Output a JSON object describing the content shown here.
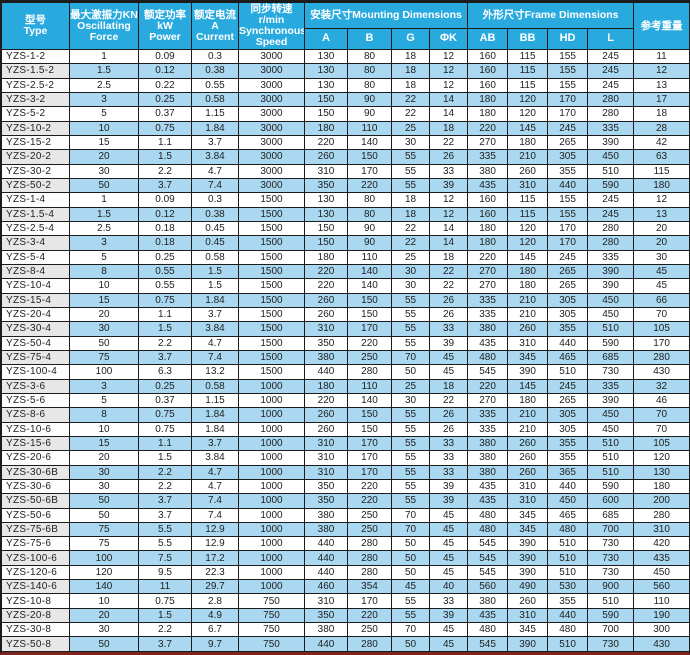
{
  "colors": {
    "header_bg": "#29aadf",
    "stripe_bg": "#a9d8f0",
    "type_stripe_bg": "#e7e7e7",
    "border": "#1c1c1c",
    "bottom_accent": "#7c2420"
  },
  "header": {
    "type": "型号\nType",
    "force": "最大激振力KN\nOscillating\nForce",
    "power": "额定功率\nkW\nPower",
    "current": "额定电流\nA\nCurrent",
    "speed": "同步转速\nr/min\nSynchronous\nSpeed",
    "mounting_group": "安装尺寸Mounting Dimensions",
    "frame_group": "外形尺寸Frame Dimensions",
    "a": "A",
    "b": "B",
    "g": "G",
    "phik": "ΦK",
    "ab": "AB",
    "bb": "BB",
    "hd": "HD",
    "l": "L",
    "weight": "参考重量"
  },
  "chart_data": {
    "type": "table",
    "columns": [
      "型号 Type",
      "最大激振力KN Oscillating Force",
      "额定功率 kW Power",
      "额定电流 A Current",
      "同步转速 r/min Synchronous Speed",
      "A",
      "B",
      "G",
      "ΦK",
      "AB",
      "BB",
      "HD",
      "L",
      "参考重量"
    ],
    "column_groups": [
      {
        "label": "安装尺寸Mounting Dimensions",
        "columns": [
          "A",
          "B",
          "G",
          "ΦK"
        ]
      },
      {
        "label": "外形尺寸Frame Dimensions",
        "columns": [
          "AB",
          "BB",
          "HD",
          "L"
        ]
      }
    ],
    "rows": [
      [
        "YZS-1-2",
        1,
        0.09,
        0.3,
        3000,
        130,
        80,
        18,
        12,
        160,
        115,
        155,
        245,
        11
      ],
      [
        "YZS-1.5-2",
        1.5,
        0.12,
        0.38,
        3000,
        130,
        80,
        18,
        12,
        160,
        115,
        155,
        245,
        12
      ],
      [
        "YZS-2.5-2",
        2.5,
        0.22,
        0.55,
        3000,
        130,
        80,
        18,
        12,
        160,
        115,
        155,
        245,
        13
      ],
      [
        "YZS-3-2",
        3,
        0.25,
        0.58,
        3000,
        150,
        90,
        22,
        14,
        180,
        120,
        170,
        280,
        17
      ],
      [
        "YZS-5-2",
        5,
        0.37,
        1.15,
        3000,
        150,
        90,
        22,
        14,
        180,
        120,
        170,
        280,
        18
      ],
      [
        "YZS-10-2",
        10,
        0.75,
        1.84,
        3000,
        180,
        110,
        25,
        18,
        220,
        145,
        245,
        335,
        28
      ],
      [
        "YZS-15-2",
        15,
        1.1,
        3.7,
        3000,
        220,
        140,
        30,
        22,
        270,
        180,
        265,
        390,
        42
      ],
      [
        "YZS-20-2",
        20,
        1.5,
        3.84,
        3000,
        260,
        150,
        55,
        26,
        335,
        210,
        305,
        450,
        63
      ],
      [
        "YZS-30-2",
        30,
        2.2,
        4.7,
        3000,
        310,
        170,
        55,
        33,
        380,
        260,
        355,
        510,
        115
      ],
      [
        "YZS-50-2",
        50,
        3.7,
        7.4,
        3000,
        350,
        220,
        55,
        39,
        435,
        310,
        440,
        590,
        180
      ],
      [
        "YZS-1-4",
        1,
        0.09,
        0.3,
        1500,
        130,
        80,
        18,
        12,
        160,
        115,
        155,
        245,
        12
      ],
      [
        "YZS-1.5-4",
        1.5,
        0.12,
        0.38,
        1500,
        130,
        80,
        18,
        12,
        160,
        115,
        155,
        245,
        13
      ],
      [
        "YZS-2.5-4",
        2.5,
        0.18,
        0.45,
        1500,
        150,
        90,
        22,
        14,
        180,
        120,
        170,
        280,
        20
      ],
      [
        "YZS-3-4",
        3,
        0.18,
        0.45,
        1500,
        150,
        90,
        22,
        14,
        180,
        120,
        170,
        280,
        20
      ],
      [
        "YZS-5-4",
        5,
        0.25,
        0.58,
        1500,
        180,
        110,
        25,
        18,
        220,
        145,
        245,
        335,
        30
      ],
      [
        "YZS-8-4",
        8,
        0.55,
        1.5,
        1500,
        220,
        140,
        30,
        22,
        270,
        180,
        265,
        390,
        45
      ],
      [
        "YZS-10-4",
        10,
        0.55,
        1.5,
        1500,
        220,
        140,
        30,
        22,
        270,
        180,
        265,
        390,
        45
      ],
      [
        "YZS-15-4",
        15,
        0.75,
        1.84,
        1500,
        260,
        150,
        55,
        26,
        335,
        210,
        305,
        450,
        66
      ],
      [
        "YZS-20-4",
        20,
        1.1,
        3.7,
        1500,
        260,
        150,
        55,
        26,
        335,
        210,
        305,
        450,
        70
      ],
      [
        "YZS-30-4",
        30,
        1.5,
        3.84,
        1500,
        310,
        170,
        55,
        33,
        380,
        260,
        355,
        510,
        105
      ],
      [
        "YZS-50-4",
        50,
        2.2,
        4.7,
        1500,
        350,
        220,
        55,
        39,
        435,
        310,
        440,
        590,
        170
      ],
      [
        "YZS-75-4",
        75,
        3.7,
        7.4,
        1500,
        380,
        250,
        70,
        45,
        480,
        345,
        465,
        685,
        280
      ],
      [
        "YZS-100-4",
        100,
        6.3,
        13.2,
        1500,
        440,
        280,
        50,
        45,
        545,
        390,
        510,
        730,
        430
      ],
      [
        "YZS-3-6",
        3,
        0.25,
        0.58,
        1000,
        180,
        110,
        25,
        18,
        220,
        145,
        245,
        335,
        32
      ],
      [
        "YZS-5-6",
        5,
        0.37,
        1.15,
        1000,
        220,
        140,
        30,
        22,
        270,
        180,
        265,
        390,
        46
      ],
      [
        "YZS-8-6",
        8,
        0.75,
        1.84,
        1000,
        260,
        150,
        55,
        26,
        335,
        210,
        305,
        450,
        70
      ],
      [
        "YZS-10-6",
        10,
        0.75,
        1.84,
        1000,
        260,
        150,
        55,
        26,
        335,
        210,
        305,
        450,
        70
      ],
      [
        "YZS-15-6",
        15,
        1.1,
        3.7,
        1000,
        310,
        170,
        55,
        33,
        380,
        260,
        355,
        510,
        105
      ],
      [
        "YZS-20-6",
        20,
        1.5,
        3.84,
        1000,
        310,
        170,
        55,
        33,
        380,
        260,
        355,
        510,
        120
      ],
      [
        "YZS-30-6B",
        30,
        2.2,
        4.7,
        1000,
        310,
        170,
        55,
        33,
        380,
        260,
        365,
        510,
        130
      ],
      [
        "YZS-30-6",
        30,
        2.2,
        4.7,
        1000,
        350,
        220,
        55,
        39,
        435,
        310,
        440,
        590,
        180
      ],
      [
        "YZS-50-6B",
        50,
        3.7,
        7.4,
        1000,
        350,
        220,
        55,
        39,
        435,
        310,
        450,
        600,
        200
      ],
      [
        "YZS-50-6",
        50,
        3.7,
        7.4,
        1000,
        380,
        250,
        70,
        45,
        480,
        345,
        465,
        685,
        280
      ],
      [
        "YZS-75-6B",
        75,
        5.5,
        12.9,
        1000,
        380,
        250,
        70,
        45,
        480,
        345,
        480,
        700,
        310
      ],
      [
        "YZS-75-6",
        75,
        5.5,
        12.9,
        1000,
        440,
        280,
        50,
        45,
        545,
        390,
        510,
        730,
        420
      ],
      [
        "YZS-100-6",
        100,
        7.5,
        17.2,
        1000,
        440,
        280,
        50,
        45,
        545,
        390,
        510,
        730,
        435
      ],
      [
        "YZS-120-6",
        120,
        9.5,
        22.3,
        1000,
        440,
        280,
        50,
        45,
        545,
        390,
        510,
        730,
        450
      ],
      [
        "YZS-140-6",
        140,
        11,
        29.7,
        1000,
        460,
        354,
        45,
        40,
        560,
        490,
        530,
        900,
        560
      ],
      [
        "YZS-10-8",
        10,
        0.75,
        2.8,
        750,
        310,
        170,
        55,
        33,
        380,
        260,
        355,
        510,
        110
      ],
      [
        "YZS-20-8",
        20,
        1.5,
        4.9,
        750,
        350,
        220,
        55,
        39,
        435,
        310,
        440,
        590,
        190
      ],
      [
        "YZS-30-8",
        30,
        2.2,
        6.7,
        750,
        380,
        250,
        70,
        45,
        480,
        345,
        480,
        700,
        300
      ],
      [
        "YZS-50-8",
        50,
        3.7,
        9.7,
        750,
        440,
        280,
        50,
        45,
        545,
        390,
        510,
        730,
        430
      ]
    ]
  }
}
